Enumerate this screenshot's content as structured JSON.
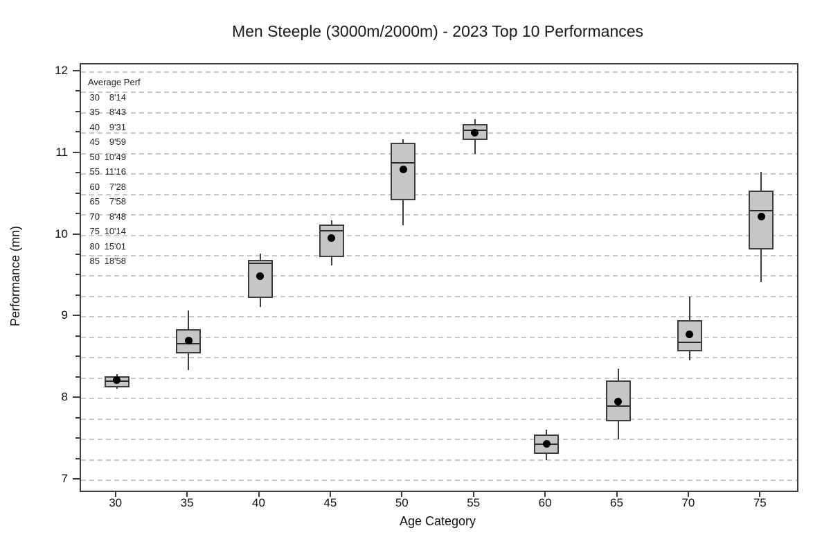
{
  "chart_data": {
    "type": "boxplot",
    "title": "Men Steeple (3000m/2000m) - 2023 Top 10 Performances",
    "xlabel": "Age Category",
    "ylabel": "Performance (mn)",
    "categories": [
      "30",
      "35",
      "40",
      "45",
      "50",
      "55",
      "60",
      "65",
      "70",
      "75"
    ],
    "y_axis": {
      "range_min": 6.87,
      "range_max": 12.09,
      "major_ticks": [
        7,
        8,
        9,
        10,
        11,
        12
      ],
      "minor_step": 0.25,
      "gridline_step": 0.25,
      "gridline_min": 7.0,
      "gridline_max": 12.0,
      "grid": "dashed"
    },
    "series": [
      {
        "category": "30",
        "whisker_low": 8.12,
        "q1": 8.14,
        "median": 8.21,
        "q3": 8.27,
        "whisker_high": 8.3,
        "mean": 8.23
      },
      {
        "category": "35",
        "whisker_low": 8.35,
        "q1": 8.55,
        "median": 8.67,
        "q3": 8.85,
        "whisker_high": 9.08,
        "mean": 8.71
      },
      {
        "category": "40",
        "whisker_low": 9.12,
        "q1": 9.23,
        "median": 9.66,
        "q3": 9.7,
        "whisker_high": 9.78,
        "mean": 9.5
      },
      {
        "category": "45",
        "whisker_low": 9.63,
        "q1": 9.73,
        "median": 10.06,
        "q3": 10.13,
        "whisker_high": 10.18,
        "mean": 9.97
      },
      {
        "category": "50",
        "whisker_low": 10.12,
        "q1": 10.43,
        "median": 10.89,
        "q3": 11.13,
        "whisker_high": 11.18,
        "mean": 10.81
      },
      {
        "category": "55",
        "whisker_low": 11.0,
        "q1": 11.17,
        "median": 11.29,
        "q3": 11.36,
        "whisker_high": 11.42,
        "mean": 11.26
      },
      {
        "category": "60",
        "whisker_low": 7.25,
        "q1": 7.32,
        "median": 7.44,
        "q3": 7.56,
        "whisker_high": 7.62,
        "mean": 7.45
      },
      {
        "category": "65",
        "whisker_low": 7.5,
        "q1": 7.72,
        "median": 7.91,
        "q3": 8.22,
        "whisker_high": 8.37,
        "mean": 7.96
      },
      {
        "category": "70",
        "whisker_low": 8.47,
        "q1": 8.58,
        "median": 8.69,
        "q3": 8.96,
        "whisker_high": 9.25,
        "mean": 8.79
      },
      {
        "category": "75",
        "whisker_low": 9.43,
        "q1": 9.83,
        "median": 10.3,
        "q3": 10.55,
        "whisker_high": 10.78,
        "mean": 10.23
      }
    ],
    "annotation": {
      "header": "Average Perf",
      "rows": [
        {
          "age": "30",
          "perf": "8'14"
        },
        {
          "age": "35",
          "perf": "8'43"
        },
        {
          "age": "40",
          "perf": "9'31"
        },
        {
          "age": "45",
          "perf": "9'59"
        },
        {
          "age": "50",
          "perf": "10'49"
        },
        {
          "age": "55",
          "perf": "11'16"
        },
        {
          "age": "60",
          "perf": "7'28"
        },
        {
          "age": "65",
          "perf": "7'58"
        },
        {
          "age": "70",
          "perf": "8'48"
        },
        {
          "age": "75",
          "perf": "10'14"
        },
        {
          "age": "80",
          "perf": "15'01"
        },
        {
          "age": "85",
          "perf": "18'58"
        }
      ]
    },
    "legend_position": "none",
    "colors": {
      "box_fill": "#c6c6c6",
      "box_border": "#3d3d3d",
      "whisker": "#3d3d3d",
      "median": "#2b2b2b",
      "mean_dot": "#000000",
      "gridline": "#c9c9c9",
      "frame": "#3d3d3d",
      "text": "#111111",
      "background": "#ffffff"
    }
  }
}
